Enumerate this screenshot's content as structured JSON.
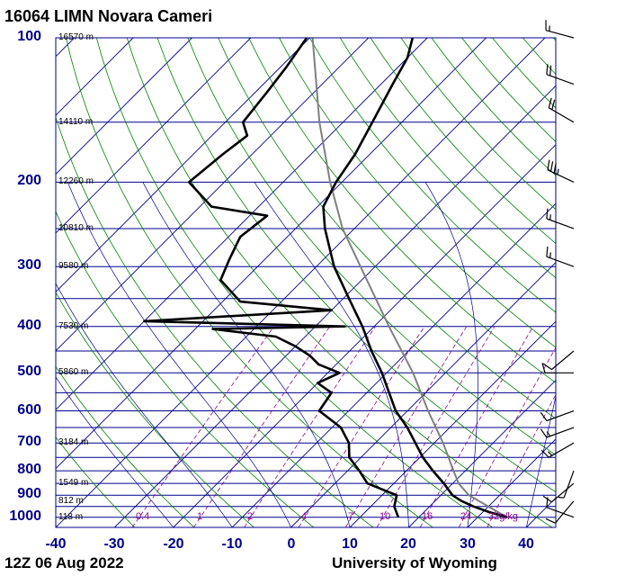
{
  "title": "16064 LIMN Novara Cameri",
  "footer": {
    "date": "12Z 06 Aug 2022",
    "source": "University of Wyoming"
  },
  "chart_data": {
    "type": "skew-t log-p",
    "x_label_values": [
      -40,
      -30,
      -20,
      -10,
      0,
      10,
      20,
      30,
      40
    ],
    "xlim": [
      -40,
      45
    ],
    "ylim": [
      1050,
      100
    ],
    "pressure_labels": [
      "100",
      "200",
      "300",
      "400",
      "500",
      "600",
      "700",
      "800",
      "900",
      "1000"
    ],
    "pressure_levels": [
      100,
      200,
      300,
      400,
      500,
      600,
      700,
      800,
      900,
      1000
    ],
    "height_labels": [
      {
        "p": 100,
        "text": "16570 m"
      },
      {
        "p": 150,
        "text": "14110 m"
      },
      {
        "p": 200,
        "text": "12260 m"
      },
      {
        "p": 250,
        "text": "10810 m"
      },
      {
        "p": 300,
        "text": "9580 m"
      },
      {
        "p": 400,
        "text": "7530 m"
      },
      {
        "p": 500,
        "text": "5860 m"
      },
      {
        "p": 700,
        "text": "3184 m"
      },
      {
        "p": 850,
        "text": "1549 m"
      },
      {
        "p": 925,
        "text": "812 m"
      },
      {
        "p": 1000,
        "text": "118 m"
      }
    ],
    "mixing_ratio_labels": [
      {
        "value": 0.4,
        "text": "0.4"
      },
      {
        "value": 1,
        "text": "1"
      },
      {
        "value": 2,
        "text": "2"
      },
      {
        "value": 4,
        "text": "4"
      },
      {
        "value": 7,
        "text": "7"
      },
      {
        "value": 10,
        "text": "10"
      },
      {
        "value": 16,
        "text": "16"
      },
      {
        "value": 24,
        "text": "24"
      },
      {
        "value": 32,
        "text": "32g/kg"
      }
    ],
    "temperature_profile": [
      {
        "p": 1000,
        "t": 35.0
      },
      {
        "p": 975,
        "t": 31.0
      },
      {
        "p": 950,
        "t": 27.5
      },
      {
        "p": 925,
        "t": 24.5
      },
      {
        "p": 900,
        "t": 22.0
      },
      {
        "p": 850,
        "t": 18.5
      },
      {
        "p": 800,
        "t": 14.5
      },
      {
        "p": 750,
        "t": 10.5
      },
      {
        "p": 700,
        "t": 6.8
      },
      {
        "p": 650,
        "t": 2.8
      },
      {
        "p": 600,
        "t": -2.0
      },
      {
        "p": 550,
        "t": -6.2
      },
      {
        "p": 500,
        "t": -10.8
      },
      {
        "p": 450,
        "t": -16.3
      },
      {
        "p": 400,
        "t": -22.0
      },
      {
        "p": 350,
        "t": -29.0
      },
      {
        "p": 300,
        "t": -37.0
      },
      {
        "p": 250,
        "t": -45.0
      },
      {
        "p": 225,
        "t": -49.0
      },
      {
        "p": 200,
        "t": -51.0
      },
      {
        "p": 175,
        "t": -52.5
      },
      {
        "p": 150,
        "t": -55.0
      },
      {
        "p": 125,
        "t": -58.0
      },
      {
        "p": 110,
        "t": -60.0
      },
      {
        "p": 100,
        "t": -62.5
      }
    ],
    "dewpoint_profile": [
      {
        "p": 1000,
        "t": 16.5
      },
      {
        "p": 950,
        "t": 14.0
      },
      {
        "p": 900,
        "t": 12.5
      },
      {
        "p": 850,
        "t": 5.5
      },
      {
        "p": 800,
        "t": 2.0
      },
      {
        "p": 750,
        "t": -2.0
      },
      {
        "p": 700,
        "t": -4.5
      },
      {
        "p": 650,
        "t": -8.5
      },
      {
        "p": 600,
        "t": -15.0
      },
      {
        "p": 550,
        "t": -16.0
      },
      {
        "p": 525,
        "t": -20.0
      },
      {
        "p": 500,
        "t": -18.0
      },
      {
        "p": 480,
        "t": -23.0
      },
      {
        "p": 460,
        "t": -26.0
      },
      {
        "p": 440,
        "t": -30.0
      },
      {
        "p": 420,
        "t": -35.0
      },
      {
        "p": 405,
        "t": -47.0
      },
      {
        "p": 400,
        "t": -25.0
      },
      {
        "p": 390,
        "t": -60.0
      },
      {
        "p": 370,
        "t": -30.0
      },
      {
        "p": 355,
        "t": -47.0
      },
      {
        "p": 320,
        "t": -54.0
      },
      {
        "p": 290,
        "t": -56.0
      },
      {
        "p": 260,
        "t": -58.0
      },
      {
        "p": 235,
        "t": -57.0
      },
      {
        "p": 225,
        "t": -68.0
      },
      {
        "p": 200,
        "t": -76.0
      },
      {
        "p": 175,
        "t": -75.0
      },
      {
        "p": 160,
        "t": -74.0
      },
      {
        "p": 150,
        "t": -77.0
      },
      {
        "p": 130,
        "t": -78.0
      },
      {
        "p": 115,
        "t": -79.0
      },
      {
        "p": 100,
        "t": -80.5
      }
    ],
    "parcel_path": [
      {
        "p": 1000,
        "t": 35.0
      },
      {
        "p": 950,
        "t": 30.0
      },
      {
        "p": 900,
        "t": 24.8
      },
      {
        "p": 850,
        "t": 21.0
      },
      {
        "p": 800,
        "t": 18.0
      },
      {
        "p": 700,
        "t": 11.5
      },
      {
        "p": 600,
        "t": 3.5
      },
      {
        "p": 500,
        "t": -5.5
      },
      {
        "p": 400,
        "t": -17.5
      },
      {
        "p": 300,
        "t": -32.5
      },
      {
        "p": 250,
        "t": -42.0
      },
      {
        "p": 200,
        "t": -52.0
      },
      {
        "p": 150,
        "t": -64.0
      },
      {
        "p": 100,
        "t": -79.5
      }
    ],
    "wind_barbs": [
      {
        "p": 1000,
        "dir": 290,
        "kt": 10
      },
      {
        "p": 925,
        "dir": 220,
        "kt": 10
      },
      {
        "p": 850,
        "dir": 230,
        "kt": 10
      },
      {
        "p": 800,
        "dir": 200,
        "kt": 5
      },
      {
        "p": 700,
        "dir": 240,
        "kt": 15
      },
      {
        "p": 650,
        "dir": 250,
        "kt": 15
      },
      {
        "p": 600,
        "dir": 250,
        "kt": 10
      },
      {
        "p": 500,
        "dir": 270,
        "kt": 10
      },
      {
        "p": 450,
        "dir": 230,
        "kt": 10
      },
      {
        "p": 300,
        "dir": 290,
        "kt": 15
      },
      {
        "p": 250,
        "dir": 290,
        "kt": 15
      },
      {
        "p": 200,
        "dir": 295,
        "kt": 35
      },
      {
        "p": 150,
        "dir": 300,
        "kt": 20
      },
      {
        "p": 125,
        "dir": 290,
        "kt": 20
      },
      {
        "p": 100,
        "dir": 285,
        "kt": 15
      }
    ]
  },
  "colors": {
    "isobar": "#00008b",
    "isotherm": "#00008b",
    "dry_adiabat": "#008000",
    "moist_adiabat": "#00008b",
    "mixing_ratio": "#8b008b",
    "temperature": "#000000",
    "dewpoint": "#000000",
    "parcel": "#7f7f7f",
    "labels": "#00008b"
  }
}
